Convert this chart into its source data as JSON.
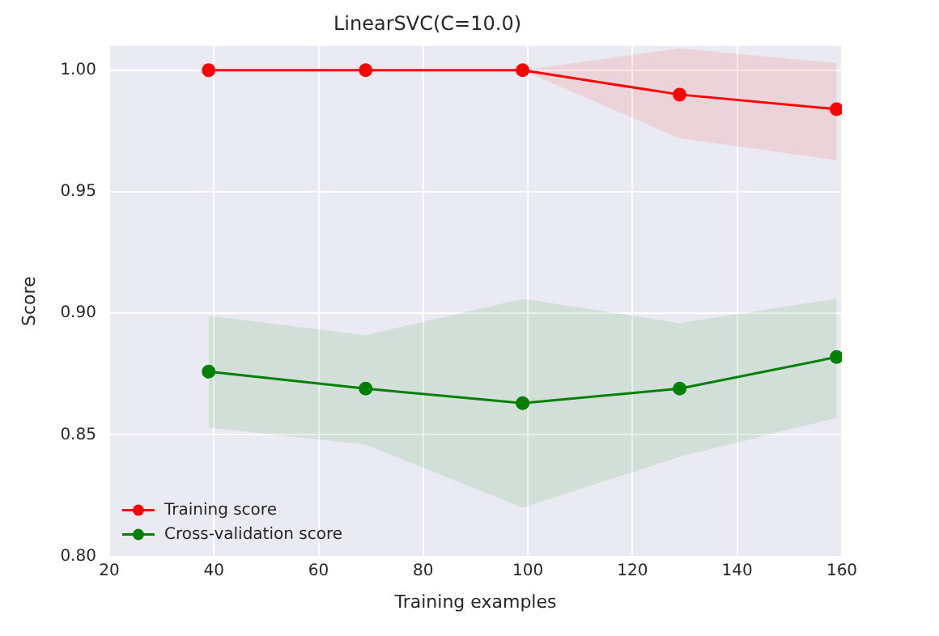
{
  "chart_data": {
    "type": "line",
    "title": "LinearSVC(C=10.0)",
    "xlabel": "Training examples",
    "ylabel": "Score",
    "x": [
      39,
      69,
      99,
      129,
      159
    ],
    "series": [
      {
        "name": "Training score",
        "color": "#ff0000",
        "values": [
          1.0,
          1.0,
          1.0,
          0.99,
          0.984
        ],
        "lower": [
          1.0,
          1.0,
          1.0,
          0.972,
          0.963
        ],
        "upper": [
          1.0,
          1.0,
          1.0,
          1.009,
          1.003
        ]
      },
      {
        "name": "Cross-validation score",
        "color": "#008000",
        "values": [
          0.876,
          0.869,
          0.863,
          0.869,
          0.882
        ],
        "lower": [
          0.853,
          0.846,
          0.82,
          0.841,
          0.857
        ],
        "upper": [
          0.899,
          0.891,
          0.906,
          0.896,
          0.906
        ]
      }
    ],
    "xlim": [
      20,
      160
    ],
    "xticks": [
      20,
      40,
      60,
      80,
      100,
      120,
      140,
      160
    ],
    "ylim": [
      0.8,
      1.01
    ],
    "yticks": [
      {
        "value": 0.8,
        "label": "0.80"
      },
      {
        "value": 0.85,
        "label": "0.85"
      },
      {
        "value": 0.9,
        "label": "0.90"
      },
      {
        "value": 0.95,
        "label": "0.95"
      },
      {
        "value": 1.0,
        "label": "1.00"
      }
    ],
    "grid": true,
    "legend": "bottom left",
    "marker": "circle",
    "line_style": "solid"
  }
}
